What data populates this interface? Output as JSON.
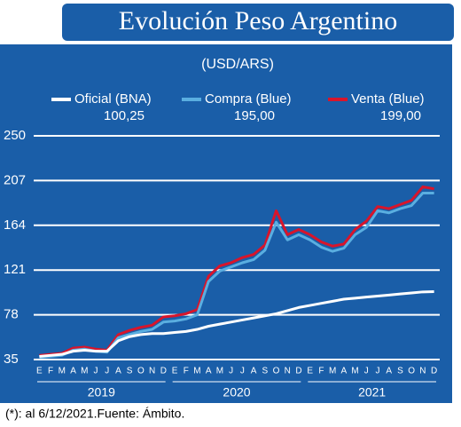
{
  "chart_data": {
    "type": "line",
    "title": "Evolución Peso Argentino",
    "subtitle": "(USD/ARS)",
    "footnote": "(*): al 6/12/2021.Fuente: Ámbito.",
    "categories": [
      "E",
      "F",
      "M",
      "A",
      "M",
      "J",
      "J",
      "A",
      "S",
      "O",
      "N",
      "D",
      "E",
      "F",
      "M",
      "A",
      "M",
      "J",
      "J",
      "A",
      "S",
      "O",
      "N",
      "D",
      "E",
      "F",
      "M",
      "A",
      "M",
      "J",
      "J",
      "A",
      "S",
      "O",
      "N",
      "D"
    ],
    "years": [
      "2019",
      "2020",
      "2021"
    ],
    "ylim": [
      35,
      250
    ],
    "yticks": [
      35,
      78,
      121,
      164,
      207,
      250
    ],
    "grid": true,
    "series": [
      {
        "name": "Venta (Blue)",
        "color": "#d8152b",
        "values": [
          39,
          40,
          41,
          46,
          47,
          45,
          44,
          59,
          63,
          66,
          68,
          76,
          77,
          79,
          83,
          115,
          125,
          128,
          133,
          136,
          145,
          178,
          155,
          160,
          155,
          148,
          144,
          146,
          160,
          168,
          182,
          180,
          184,
          188,
          201,
          199
        ],
        "value_labels": [
          null,
          null,
          null,
          null,
          null,
          null,
          null,
          null,
          null,
          null,
          null,
          null,
          null,
          null,
          null,
          null,
          null,
          null,
          null,
          null,
          null,
          null,
          null,
          null,
          null,
          null,
          null,
          null,
          null,
          null,
          null,
          null,
          null,
          null,
          null,
          "199,00"
        ]
      },
      {
        "name": "Compra (Blue)",
        "color": "#5aaee0",
        "values": [
          37,
          38,
          39,
          44,
          45,
          43,
          42,
          56,
          59,
          62,
          64,
          71,
          72,
          74,
          78,
          110,
          120,
          124,
          128,
          131,
          140,
          167,
          150,
          155,
          150,
          143,
          139,
          142,
          155,
          162,
          178,
          176,
          180,
          183,
          195,
          195
        ],
        "value_labels": [
          null,
          null,
          null,
          null,
          null,
          null,
          null,
          null,
          null,
          null,
          null,
          null,
          null,
          null,
          null,
          null,
          null,
          null,
          null,
          null,
          null,
          null,
          null,
          null,
          null,
          null,
          null,
          null,
          null,
          null,
          null,
          null,
          null,
          null,
          null,
          "195,00"
        ]
      },
      {
        "name": "Oficial (BNA)",
        "color": "#ffffff",
        "values": [
          38,
          39,
          40,
          43,
          44,
          43,
          43,
          53,
          57,
          59,
          60,
          60,
          61,
          62,
          64,
          67,
          69,
          71,
          73,
          75,
          77,
          79,
          82,
          85,
          87,
          89,
          91,
          93,
          94,
          95,
          96,
          97,
          98,
          99,
          100,
          100.25
        ],
        "value_labels": [
          null,
          null,
          null,
          null,
          null,
          null,
          null,
          null,
          null,
          null,
          null,
          null,
          null,
          null,
          null,
          null,
          null,
          null,
          null,
          null,
          null,
          null,
          null,
          null,
          null,
          null,
          null,
          null,
          null,
          null,
          null,
          null,
          null,
          null,
          null,
          "100,25"
        ]
      }
    ]
  }
}
